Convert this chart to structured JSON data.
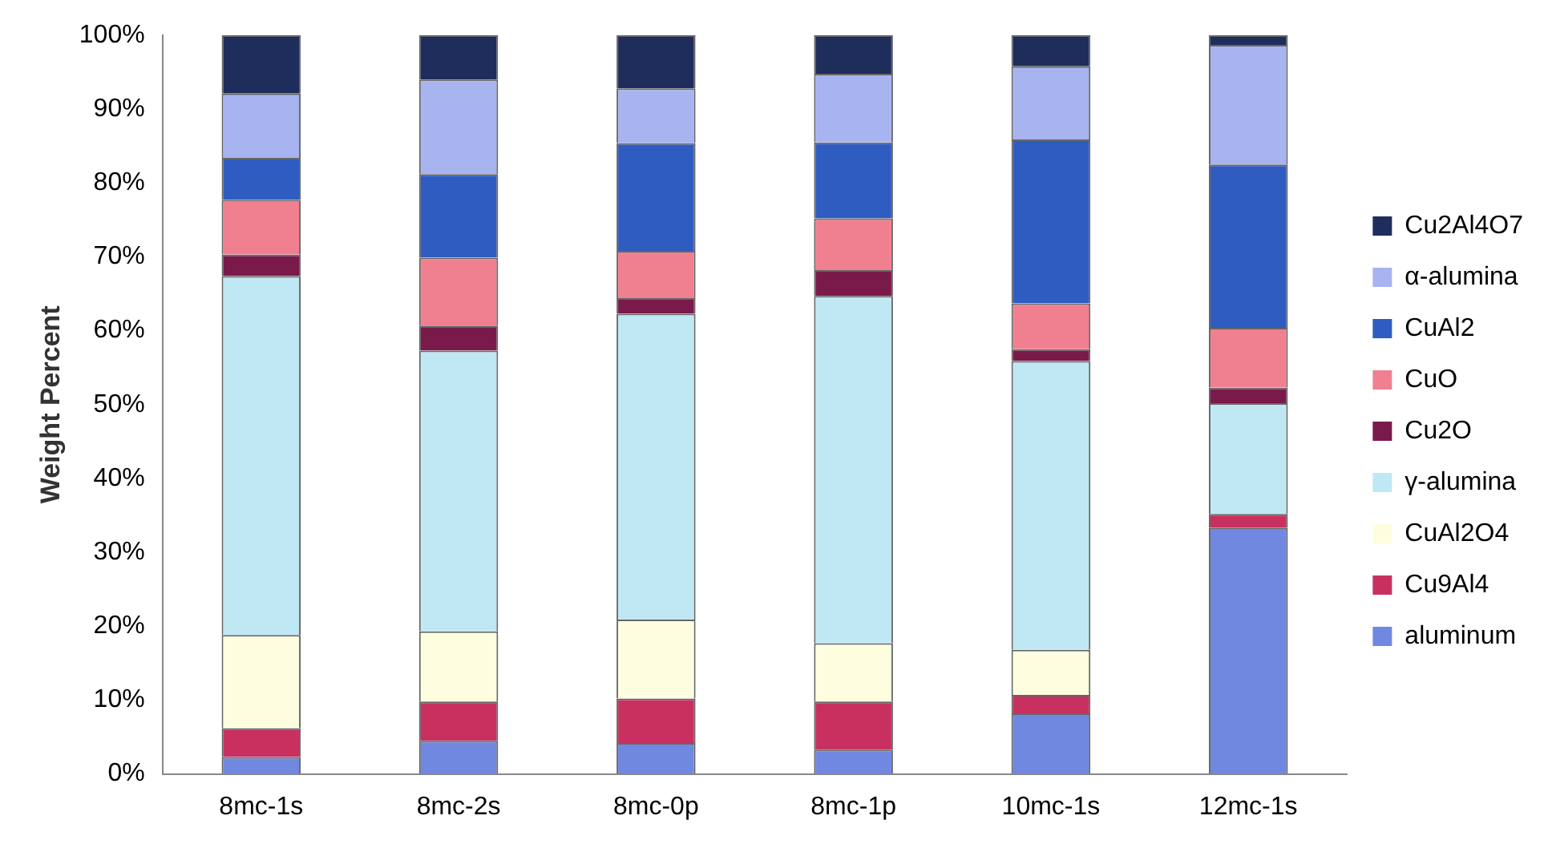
{
  "chart_data": {
    "type": "bar",
    "stacked": true,
    "ylabel": "Weight Percent",
    "categories": [
      "8mc-1s",
      "8mc-2s",
      "8mc-0p",
      "8mc-1p",
      "10mc-1s",
      "12mc-1s"
    ],
    "series": [
      {
        "name": "aluminum",
        "color": "#7088e0",
        "values": [
          2.3,
          4.5,
          4.2,
          3.3,
          8.2,
          33.3
        ]
      },
      {
        "name": "Cu9Al4",
        "color": "#c83060",
        "values": [
          3.9,
          5.3,
          6.0,
          6.5,
          2.5,
          1.9
        ]
      },
      {
        "name": "CuAl2O4",
        "color": "#fdfde0",
        "values": [
          12.6,
          9.5,
          10.7,
          7.9,
          6.1,
          0
        ]
      },
      {
        "name": "γ-alumina",
        "color": "#c0e8f4",
        "values": [
          48.6,
          38,
          41.4,
          47,
          39.1,
          15
        ]
      },
      {
        "name": "Cu2O",
        "color": "#7a1a4a",
        "values": [
          2.9,
          3.4,
          2.1,
          3.5,
          1.6,
          2.1
        ]
      },
      {
        "name": "CuO",
        "color": "#f08090",
        "values": [
          7.4,
          9.2,
          6.4,
          7.0,
          6.2,
          8.1
        ]
      },
      {
        "name": "CuAl2",
        "color": "#2f5cc0",
        "values": [
          5.7,
          11.3,
          14.6,
          10.3,
          22.2,
          22.1
        ]
      },
      {
        "name": "α-alumina",
        "color": "#a8b4f0",
        "values": [
          8.7,
          12.8,
          7.4,
          9.3,
          9.9,
          16.2
        ]
      },
      {
        "name": "Cu2Al4O7",
        "color": "#1f2d5c",
        "values": [
          7.9,
          6.0,
          7.2,
          5.2,
          4.2,
          1.3
        ]
      }
    ],
    "ylim": [
      0,
      100
    ],
    "yticks": [
      {
        "value": 0,
        "label": "0%"
      },
      {
        "value": 10,
        "label": "10%"
      },
      {
        "value": 20,
        "label": "20%"
      },
      {
        "value": 30,
        "label": "30%"
      },
      {
        "value": 40,
        "label": "40%"
      },
      {
        "value": 50,
        "label": "50%"
      },
      {
        "value": 60,
        "label": "60%"
      },
      {
        "value": 70,
        "label": "70%"
      },
      {
        "value": 80,
        "label": "80%"
      },
      {
        "value": 90,
        "label": "90%"
      },
      {
        "value": 100,
        "label": "100%"
      }
    ],
    "grid": false,
    "legend": "right"
  }
}
